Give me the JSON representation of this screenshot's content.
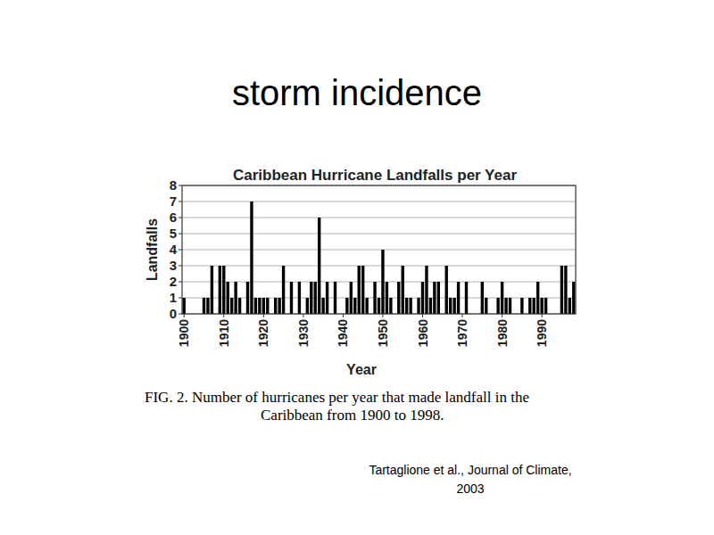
{
  "slide_title": "storm incidence",
  "chart_data": {
    "type": "bar",
    "title": "Caribbean Hurricane Landfalls per Year",
    "x_label": "Year",
    "y_label": "Landfalls",
    "categories": [
      "1900",
      null,
      null,
      null,
      null,
      null,
      null,
      null,
      null,
      null,
      "1910",
      null,
      null,
      null,
      null,
      null,
      null,
      null,
      null,
      null,
      "1920",
      null,
      null,
      null,
      null,
      null,
      null,
      null,
      null,
      null,
      "1930",
      null,
      null,
      null,
      null,
      null,
      null,
      null,
      null,
      null,
      "1940",
      null,
      null,
      null,
      null,
      null,
      null,
      null,
      null,
      null,
      "1950",
      null,
      null,
      null,
      null,
      null,
      null,
      null,
      null,
      null,
      "1960",
      null,
      null,
      null,
      null,
      null,
      null,
      null,
      null,
      null,
      "1970",
      null,
      null,
      null,
      null,
      null,
      null,
      null,
      null,
      null,
      "1980",
      null,
      null,
      null,
      null,
      null,
      null,
      null,
      null,
      null,
      "1990",
      null,
      null,
      null,
      null,
      null,
      null,
      null,
      null
    ],
    "values": [
      1,
      0,
      0,
      0,
      0,
      1,
      1,
      3,
      0,
      3,
      3,
      2,
      1,
      2,
      1,
      0,
      2,
      7,
      1,
      1,
      1,
      1,
      0,
      1,
      1,
      3,
      0,
      2,
      0,
      2,
      0,
      1,
      2,
      2,
      6,
      1,
      2,
      0,
      2,
      0,
      0,
      1,
      2,
      1,
      3,
      3,
      1,
      0,
      2,
      1,
      4,
      2,
      1,
      0,
      2,
      3,
      1,
      1,
      0,
      1,
      2,
      3,
      1,
      2,
      2,
      0,
      3,
      1,
      1,
      2,
      0,
      2,
      0,
      0,
      0,
      2,
      1,
      0,
      0,
      1,
      2,
      1,
      1,
      0,
      0,
      1,
      0,
      1,
      1,
      2,
      1,
      1,
      0,
      0,
      0,
      3,
      3,
      1,
      2
    ],
    "color": "#000000",
    "ylim": [
      0,
      8
    ],
    "yticks": [
      0,
      1,
      2,
      3,
      4,
      5,
      6,
      7,
      8
    ],
    "grid": true
  },
  "caption": [
    "FIG. 2. Number of hurricanes per year that made landfall in the",
    "Caribbean from 1900 to 1998."
  ],
  "citation": [
    "Tartaglione et al., Journal of Climate,",
    "2003"
  ]
}
